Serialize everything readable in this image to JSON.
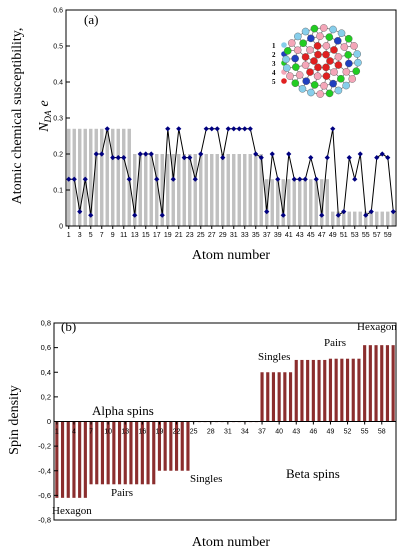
{
  "chart_data": [
    {
      "type": "line",
      "panel_label": "(a)",
      "xlabel": "Atom number",
      "ylabel_line1": "Atomic chemical susceptibility,",
      "ylabel_line2": "N",
      "ylabel_sub": "DA",
      "ylabel_italic": "e",
      "ylim": [
        0,
        0.6
      ],
      "yticks": [
        "0",
        "0.1",
        "0.2",
        "0.3",
        "0.4",
        "0.5",
        "0.6"
      ],
      "xticks": [
        "1",
        "3",
        "5",
        "7",
        "9",
        "11",
        "13",
        "15",
        "17",
        "19",
        "21",
        "23",
        "25",
        "27",
        "29",
        "31",
        "33",
        "35",
        "37",
        "39",
        "41",
        "43",
        "45",
        "47",
        "49",
        "51",
        "53",
        "55",
        "57",
        "59"
      ],
      "grid": false,
      "x": [
        1,
        2,
        3,
        4,
        5,
        6,
        7,
        8,
        9,
        10,
        11,
        12,
        13,
        14,
        15,
        16,
        17,
        18,
        19,
        20,
        21,
        22,
        23,
        24,
        25,
        26,
        27,
        28,
        29,
        30,
        31,
        32,
        33,
        34,
        35,
        36,
        37,
        38,
        39,
        40,
        41,
        42,
        43,
        44,
        45,
        46,
        47,
        48,
        49,
        50,
        51,
        52,
        53,
        54,
        55,
        56,
        57,
        58,
        59,
        60
      ],
      "bar_values": [
        0.27,
        0.27,
        0.27,
        0.27,
        0.27,
        0.27,
        0.27,
        0.27,
        0.27,
        0.27,
        0.27,
        0.27,
        0.2,
        0.2,
        0.2,
        0.2,
        0.2,
        0.2,
        0.2,
        0.2,
        0.2,
        0.2,
        0.2,
        0.2,
        0.2,
        0.2,
        0.2,
        0.2,
        0.2,
        0.2,
        0.2,
        0.2,
        0.2,
        0.2,
        0.2,
        0.2,
        0.13,
        0.13,
        0.13,
        0.13,
        0.13,
        0.13,
        0.13,
        0.13,
        0.13,
        0.13,
        0.13,
        0.13,
        0.04,
        0.04,
        0.04,
        0.04,
        0.04,
        0.04,
        0.04,
        0.04,
        0.04,
        0.04,
        0.04,
        0.04
      ],
      "line_values": [
        0.13,
        0.13,
        0.04,
        0.13,
        0.03,
        0.2,
        0.2,
        0.27,
        0.19,
        0.19,
        0.19,
        0.13,
        0.03,
        0.2,
        0.2,
        0.2,
        0.13,
        0.03,
        0.27,
        0.13,
        0.27,
        0.19,
        0.19,
        0.13,
        0.2,
        0.27,
        0.27,
        0.27,
        0.19,
        0.27,
        0.27,
        0.27,
        0.27,
        0.27,
        0.2,
        0.19,
        0.04,
        0.2,
        0.13,
        0.03,
        0.2,
        0.13,
        0.13,
        0.13,
        0.19,
        0.13,
        0.03,
        0.19,
        0.27,
        0.03,
        0.04,
        0.19,
        0.13,
        0.2,
        0.03,
        0.04,
        0.19,
        0.2,
        0.19,
        0.04
      ],
      "bar_color": "#c0c0c0",
      "line_color": "#000000",
      "marker_color": "#000080",
      "inset_legend": [
        "1",
        "2",
        "3",
        "4",
        "5"
      ],
      "inset_colors": [
        "#87ceeb",
        "#1f3fbf",
        "#22cc22",
        "#f4a6b8",
        "#e02020"
      ]
    },
    {
      "type": "bar",
      "panel_label": "(b)",
      "xlabel": "Atom number",
      "ylabel": "Spin density",
      "ylim": [
        -0.8,
        0.8
      ],
      "yticks": [
        "-0,8",
        "-0,6",
        "-0,4",
        "-0,2",
        "0",
        "0,2",
        "0,4",
        "0,6",
        "0,8"
      ],
      "xticks": [
        "1",
        "4",
        "7",
        "10",
        "13",
        "16",
        "19",
        "22",
        "25",
        "28",
        "31",
        "34",
        "37",
        "40",
        "43",
        "46",
        "49",
        "52",
        "55",
        "58"
      ],
      "bar_color": "#8b2e2e",
      "x": [
        1,
        2,
        3,
        4,
        5,
        6,
        7,
        8,
        9,
        10,
        11,
        12,
        13,
        14,
        15,
        16,
        17,
        18,
        19,
        20,
        21,
        22,
        23,
        24,
        25,
        26,
        27,
        28,
        29,
        30,
        31,
        32,
        33,
        34,
        35,
        36,
        37,
        38,
        39,
        40,
        41,
        42,
        43,
        44,
        45,
        46,
        47,
        48,
        49,
        50,
        51,
        52,
        53,
        54,
        55,
        56,
        57,
        58,
        59,
        60
      ],
      "values": [
        -0.62,
        -0.62,
        -0.62,
        -0.62,
        -0.62,
        -0.62,
        -0.51,
        -0.51,
        -0.51,
        -0.51,
        -0.51,
        -0.51,
        -0.51,
        -0.51,
        -0.51,
        -0.51,
        -0.51,
        -0.51,
        -0.4,
        -0.4,
        -0.4,
        -0.4,
        -0.4,
        -0.4,
        -0.005,
        -0.005,
        -0.005,
        -0.005,
        -0.005,
        -0.005,
        -0.005,
        -0.005,
        -0.005,
        -0.005,
        -0.005,
        -0.005,
        0.4,
        0.4,
        0.4,
        0.4,
        0.4,
        0.4,
        0.5,
        0.5,
        0.5,
        0.5,
        0.5,
        0.5,
        0.51,
        0.51,
        0.51,
        0.51,
        0.51,
        0.51,
        0.62,
        0.62,
        0.62,
        0.62,
        0.62,
        0.62
      ],
      "annotations": {
        "alpha": "Alpha spins",
        "beta": "Beta spins",
        "hexagon_neg": "Hexagon",
        "pairs_neg": "Pairs",
        "singles_neg": "Singles",
        "singles_pos": "Singles",
        "pairs_pos": "Pairs",
        "hexagon_pos": "Hexagon"
      }
    }
  ]
}
